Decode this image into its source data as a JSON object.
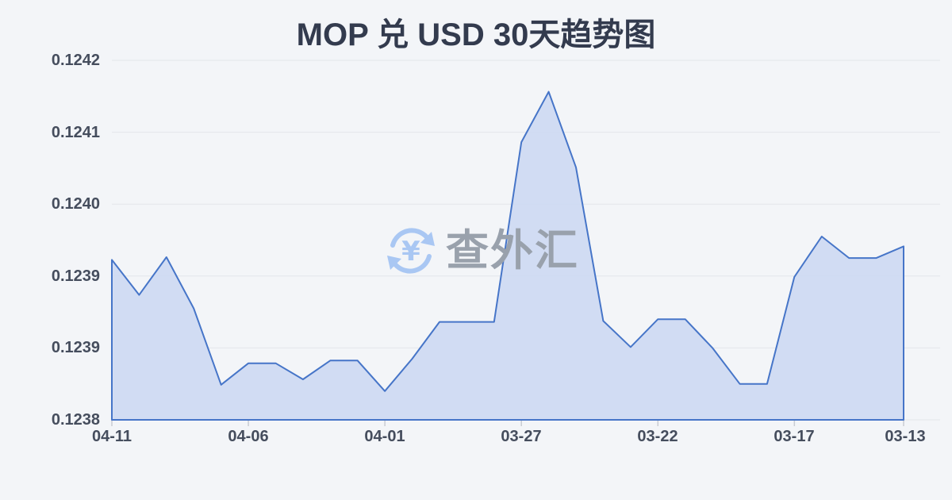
{
  "page": {
    "title": "MOP 兑 USD 30天趋势图"
  },
  "watermark": {
    "text": "查外汇",
    "symbol": "¥",
    "icon": "currency-exchange-icon",
    "icon_color": "#a9c7f3",
    "text_color": "#99a1ac"
  },
  "chart_data": {
    "type": "area",
    "title": "MOP 兑 USD 30天趋势图",
    "xlabel": "",
    "ylabel": "",
    "x": [
      "04-11",
      "04-10",
      "04-09",
      "04-08",
      "04-07",
      "04-06",
      "04-05",
      "04-04",
      "04-03",
      "04-02",
      "04-01",
      "03-31",
      "03-30",
      "03-29",
      "03-28",
      "03-27",
      "03-26",
      "03-25",
      "03-24",
      "03-23",
      "03-22",
      "03-21",
      "03-20",
      "03-19",
      "03-18",
      "03-17",
      "03-16",
      "03-15",
      "03-14",
      "03-13"
    ],
    "values": [
      0.123978,
      0.123939,
      0.123981,
      0.123924,
      0.123839,
      0.123863,
      0.123863,
      0.123845,
      0.123866,
      0.123866,
      0.123832,
      0.123868,
      0.123909,
      0.123909,
      0.123909,
      0.124109,
      0.124165,
      0.124081,
      0.12391,
      0.123881,
      0.123912,
      0.123912,
      0.12388,
      0.12384,
      0.12384,
      0.123959,
      0.124004,
      0.12398,
      0.12398,
      0.123993
    ],
    "ylim": [
      0.1238,
      0.1242
    ],
    "y_tick_labels": [
      "0.1242",
      "0.1241",
      "0.1240",
      "0.1239",
      "0.1239",
      "0.1238"
    ],
    "x_tick_labels": [
      "04-11",
      "04-06",
      "04-01",
      "03-27",
      "03-22",
      "03-17",
      "03-13"
    ],
    "x_tick_indices": [
      0,
      5,
      10,
      15,
      20,
      25,
      29
    ],
    "grid": true,
    "legend": false,
    "colors": {
      "line": "#4675c8",
      "fill": "#cfdaf2",
      "grid": "#e3e6ea",
      "tick": "#c9ccd3",
      "axis_text": "#454d5d",
      "title_text": "#333b4e",
      "background": "#f3f5f8"
    }
  }
}
